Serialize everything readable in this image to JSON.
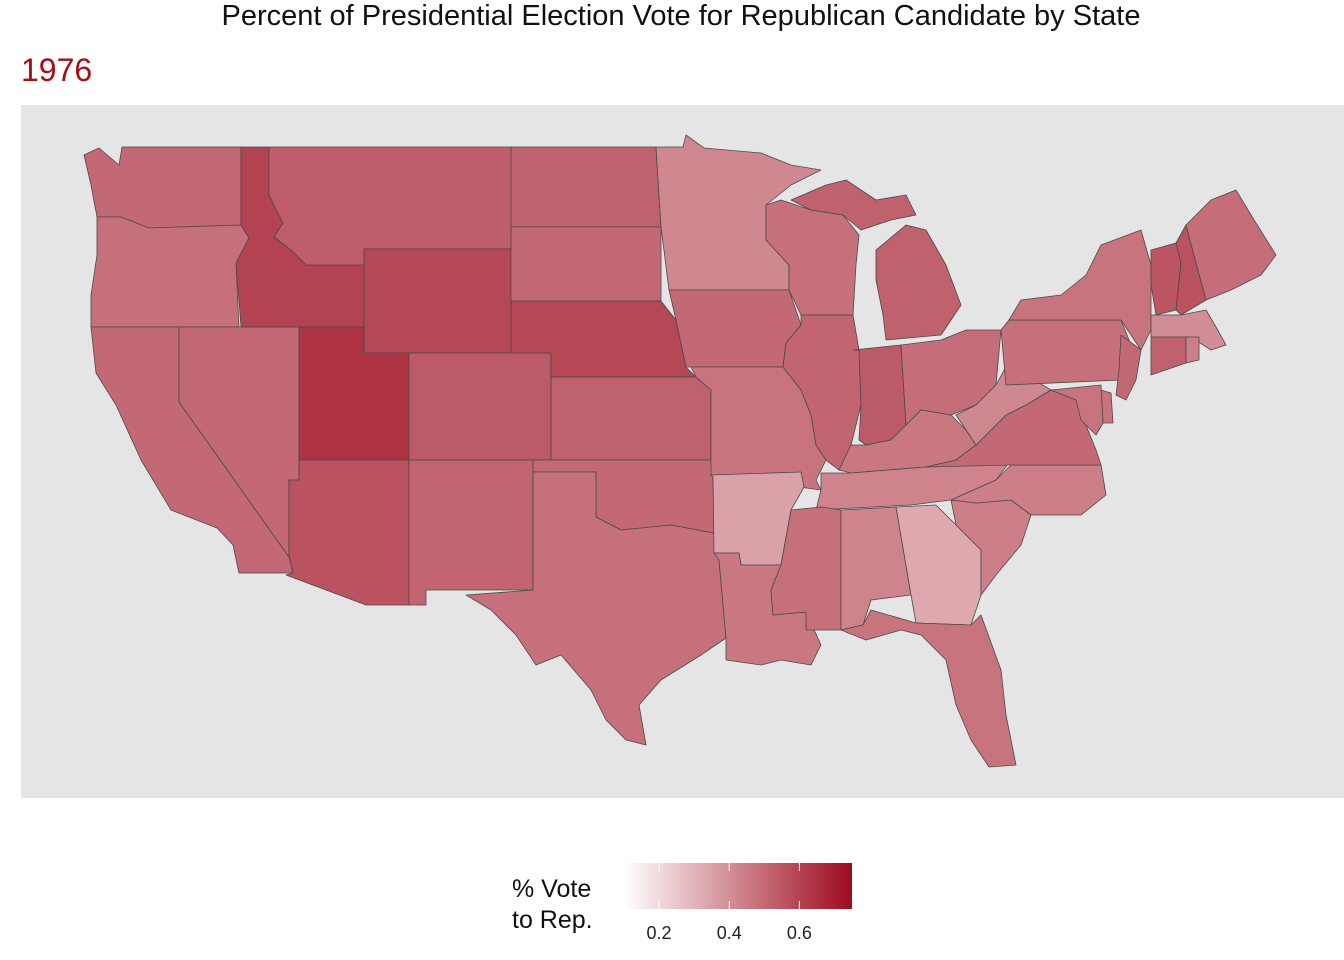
{
  "title": "Percent of Presidential Election Vote for Republican Candidate by State",
  "subtitle": "1976",
  "colors": {
    "panel_background": "#e5e5e5",
    "subtitle": "#a50f15",
    "legend_low": "#ffffff",
    "legend_high": "#9e0b1e",
    "border": "#4a4a4a"
  },
  "legend": {
    "title": "% Vote\nto Rep.",
    "scale_min": 0.1,
    "scale_max": 0.75,
    "ticks": [
      {
        "value": 0.2,
        "label": "0.2"
      },
      {
        "value": 0.4,
        "label": "0.4"
      },
      {
        "value": 0.6,
        "label": "0.6"
      }
    ]
  },
  "chart_data": {
    "type": "choropleth",
    "variable": "share of vote to Republican candidate",
    "year": "1976",
    "states": [
      {
        "name": "WA",
        "value": 0.5
      },
      {
        "name": "OR",
        "value": 0.48
      },
      {
        "name": "CA",
        "value": 0.5
      },
      {
        "name": "NV",
        "value": 0.5
      },
      {
        "name": "ID",
        "value": 0.6
      },
      {
        "name": "MT",
        "value": 0.53
      },
      {
        "name": "WY",
        "value": 0.59
      },
      {
        "name": "UT",
        "value": 0.64
      },
      {
        "name": "AZ",
        "value": 0.56
      },
      {
        "name": "CO",
        "value": 0.54
      },
      {
        "name": "NM",
        "value": 0.51
      },
      {
        "name": "ND",
        "value": 0.52
      },
      {
        "name": "SD",
        "value": 0.5
      },
      {
        "name": "NE",
        "value": 0.59
      },
      {
        "name": "KS",
        "value": 0.52
      },
      {
        "name": "OK",
        "value": 0.5
      },
      {
        "name": "TX",
        "value": 0.48
      },
      {
        "name": "MN",
        "value": 0.42
      },
      {
        "name": "IA",
        "value": 0.5
      },
      {
        "name": "MO",
        "value": 0.47
      },
      {
        "name": "AR",
        "value": 0.35
      },
      {
        "name": "LA",
        "value": 0.46
      },
      {
        "name": "WI",
        "value": 0.48
      },
      {
        "name": "IL",
        "value": 0.51
      },
      {
        "name": "MI",
        "value": 0.52
      },
      {
        "name": "IN",
        "value": 0.54
      },
      {
        "name": "OH",
        "value": 0.49
      },
      {
        "name": "KY",
        "value": 0.46
      },
      {
        "name": "TN",
        "value": 0.43
      },
      {
        "name": "MS",
        "value": 0.48
      },
      {
        "name": "AL",
        "value": 0.43
      },
      {
        "name": "GA",
        "value": 0.33
      },
      {
        "name": "FL",
        "value": 0.47
      },
      {
        "name": "SC",
        "value": 0.44
      },
      {
        "name": "NC",
        "value": 0.44
      },
      {
        "name": "VA",
        "value": 0.5
      },
      {
        "name": "WV",
        "value": 0.42
      },
      {
        "name": "PA",
        "value": 0.48
      },
      {
        "name": "NY",
        "value": 0.47
      },
      {
        "name": "VT",
        "value": 0.55
      },
      {
        "name": "NH",
        "value": 0.56
      },
      {
        "name": "ME",
        "value": 0.49
      },
      {
        "name": "MA",
        "value": 0.4
      },
      {
        "name": "CT",
        "value": 0.52
      },
      {
        "name": "RI",
        "value": 0.44
      },
      {
        "name": "NJ",
        "value": 0.5
      },
      {
        "name": "DE",
        "value": 0.47
      },
      {
        "name": "MD",
        "value": 0.47
      }
    ]
  }
}
